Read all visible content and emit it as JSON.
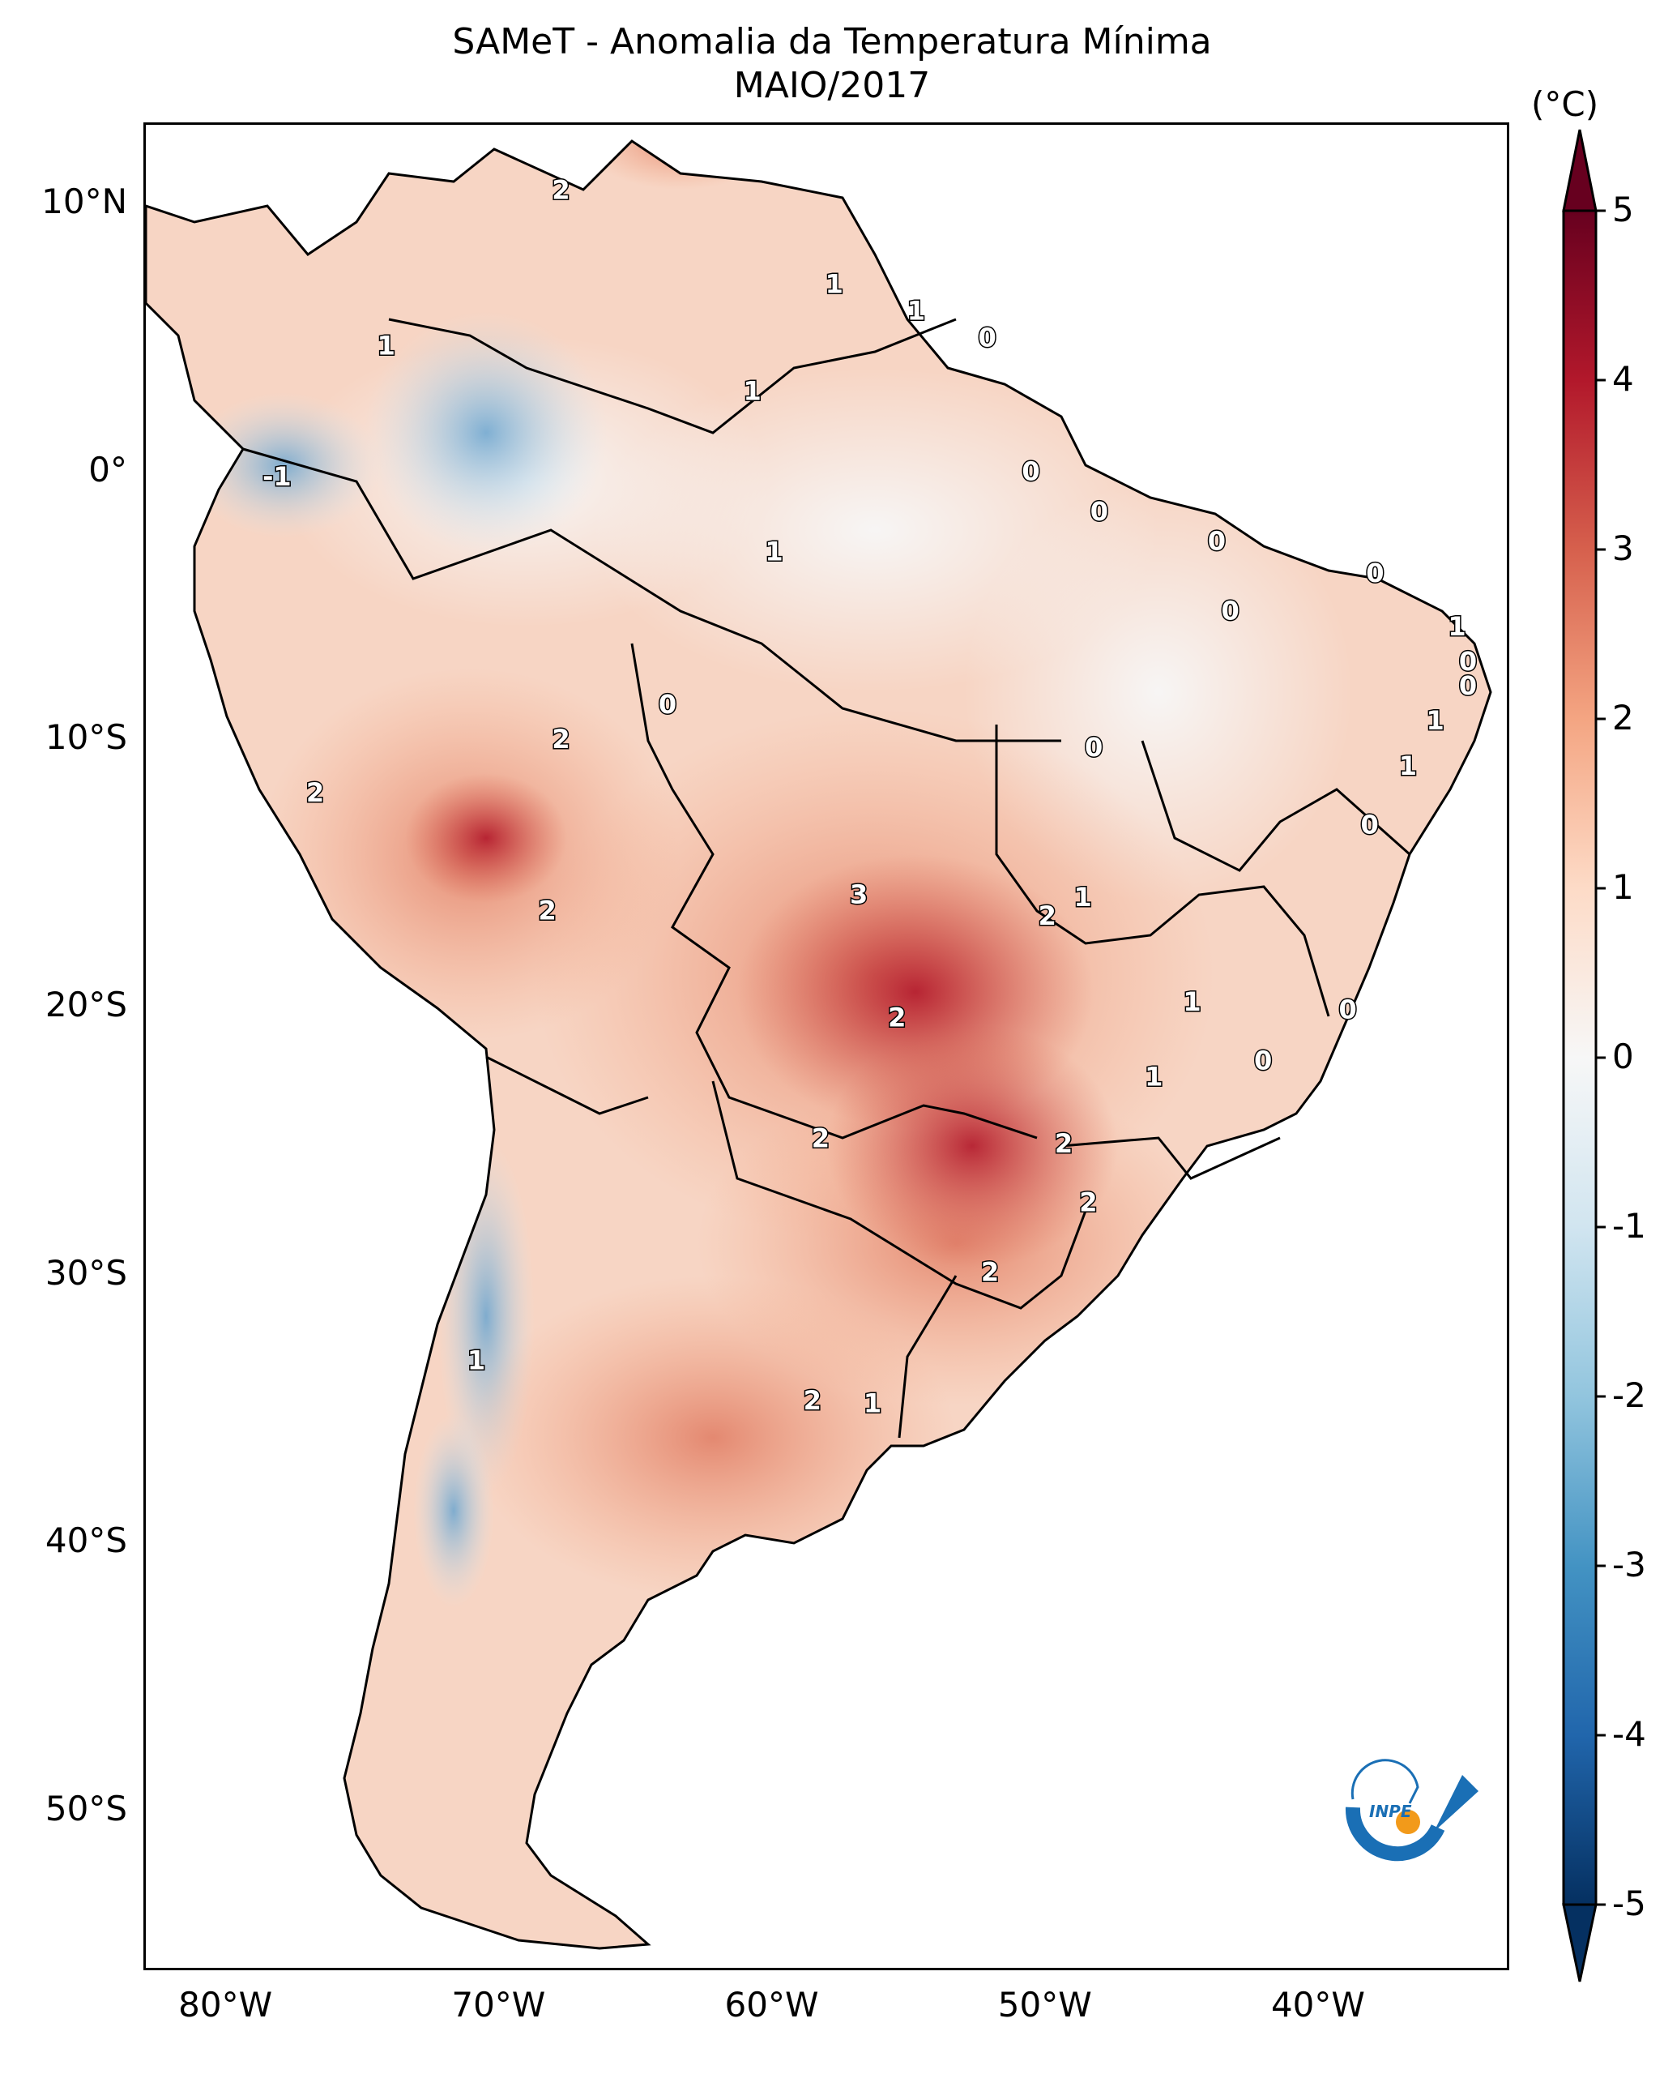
{
  "title": {
    "line1": "SAMeT - Anomalia da Temperatura Mínima",
    "line2": "MAIO/2017"
  },
  "map": {
    "lon_range": [
      -83,
      -33
    ],
    "lat_range": [
      -56,
      13
    ],
    "lat_ticks": [
      {
        "value": 10,
        "label": "10°N"
      },
      {
        "value": 0,
        "label": "0°"
      },
      {
        "value": -10,
        "label": "10°S"
      },
      {
        "value": -20,
        "label": "20°S"
      },
      {
        "value": -30,
        "label": "30°S"
      },
      {
        "value": -40,
        "label": "40°S"
      },
      {
        "value": -50,
        "label": "50°S"
      }
    ],
    "lon_ticks": [
      {
        "value": -80,
        "label": "80°W"
      },
      {
        "value": -70,
        "label": "70°W"
      },
      {
        "value": -60,
        "label": "60°W"
      },
      {
        "value": -50,
        "label": "50°W"
      },
      {
        "value": -40,
        "label": "40°W"
      }
    ],
    "contour_labels": [
      {
        "text": "2",
        "lon": -67.8,
        "lat": 10.5
      },
      {
        "text": "1",
        "lon": -57.8,
        "lat": 7.0
      },
      {
        "text": "1",
        "lon": -54.8,
        "lat": 6.0
      },
      {
        "text": "0",
        "lon": -52.2,
        "lat": 5.0
      },
      {
        "text": "1",
        "lon": -74.2,
        "lat": 4.7
      },
      {
        "text": "1",
        "lon": -60.8,
        "lat": 3.0
      },
      {
        "text": "0",
        "lon": -50.6,
        "lat": 0.0
      },
      {
        "text": "-1",
        "lon": -78.2,
        "lat": -0.2
      },
      {
        "text": "0",
        "lon": -48.1,
        "lat": -1.5
      },
      {
        "text": "1",
        "lon": -60.0,
        "lat": -3.0
      },
      {
        "text": "0",
        "lon": -43.8,
        "lat": -2.6
      },
      {
        "text": "0",
        "lon": -38.0,
        "lat": -3.8
      },
      {
        "text": "0",
        "lon": -43.3,
        "lat": -5.2
      },
      {
        "text": "1",
        "lon": -35.0,
        "lat": -5.8
      },
      {
        "text": "0",
        "lon": -34.6,
        "lat": -7.1
      },
      {
        "text": "0",
        "lon": -34.6,
        "lat": -8.0
      },
      {
        "text": "0",
        "lon": -63.9,
        "lat": -8.7
      },
      {
        "text": "1",
        "lon": -35.8,
        "lat": -9.3
      },
      {
        "text": "2",
        "lon": -67.8,
        "lat": -10.0
      },
      {
        "text": "0",
        "lon": -48.3,
        "lat": -10.3
      },
      {
        "text": "1",
        "lon": -36.8,
        "lat": -11.0
      },
      {
        "text": "2",
        "lon": -76.8,
        "lat": -12.0
      },
      {
        "text": "0",
        "lon": -38.2,
        "lat": -13.2
      },
      {
        "text": "3",
        "lon": -56.9,
        "lat": -15.8
      },
      {
        "text": "1",
        "lon": -48.7,
        "lat": -15.9
      },
      {
        "text": "2",
        "lon": -50.0,
        "lat": -16.6
      },
      {
        "text": "2",
        "lon": -68.3,
        "lat": -16.4
      },
      {
        "text": "1",
        "lon": -44.7,
        "lat": -19.8
      },
      {
        "text": "0",
        "lon": -39.0,
        "lat": -20.1
      },
      {
        "text": "2",
        "lon": -55.5,
        "lat": -20.4
      },
      {
        "text": "0",
        "lon": -42.1,
        "lat": -22.0
      },
      {
        "text": "1",
        "lon": -46.1,
        "lat": -22.6
      },
      {
        "text": "2",
        "lon": -58.3,
        "lat": -24.9
      },
      {
        "text": "2",
        "lon": -49.4,
        "lat": -25.1
      },
      {
        "text": "2",
        "lon": -48.5,
        "lat": -27.3
      },
      {
        "text": "2",
        "lon": -52.1,
        "lat": -29.9
      },
      {
        "text": "1",
        "lon": -70.9,
        "lat": -33.2
      },
      {
        "text": "2",
        "lon": -58.6,
        "lat": -34.7
      },
      {
        "text": "1",
        "lon": -56.4,
        "lat": -34.8
      }
    ]
  },
  "colorbar": {
    "unit": "(°C)",
    "min": -5,
    "max": 5,
    "ticks": [
      {
        "value": 5,
        "label": "5"
      },
      {
        "value": 4,
        "label": "4"
      },
      {
        "value": 3,
        "label": "3"
      },
      {
        "value": 2,
        "label": "2"
      },
      {
        "value": 1,
        "label": "1"
      },
      {
        "value": 0,
        "label": "0"
      },
      {
        "value": -1,
        "label": "-1"
      },
      {
        "value": -2,
        "label": "-2"
      },
      {
        "value": -3,
        "label": "-3"
      },
      {
        "value": -4,
        "label": "-4"
      },
      {
        "value": -5,
        "label": "-5"
      }
    ],
    "colors": [
      "#053061",
      "#2166ac",
      "#4393c3",
      "#92c5de",
      "#d1e5f0",
      "#f7f7f7",
      "#fddbc7",
      "#f4a582",
      "#d6604d",
      "#b2182b",
      "#67001f"
    ]
  },
  "logo": {
    "text": "INPE",
    "blue": "#1a6fb5",
    "orange": "#f29a1a"
  }
}
